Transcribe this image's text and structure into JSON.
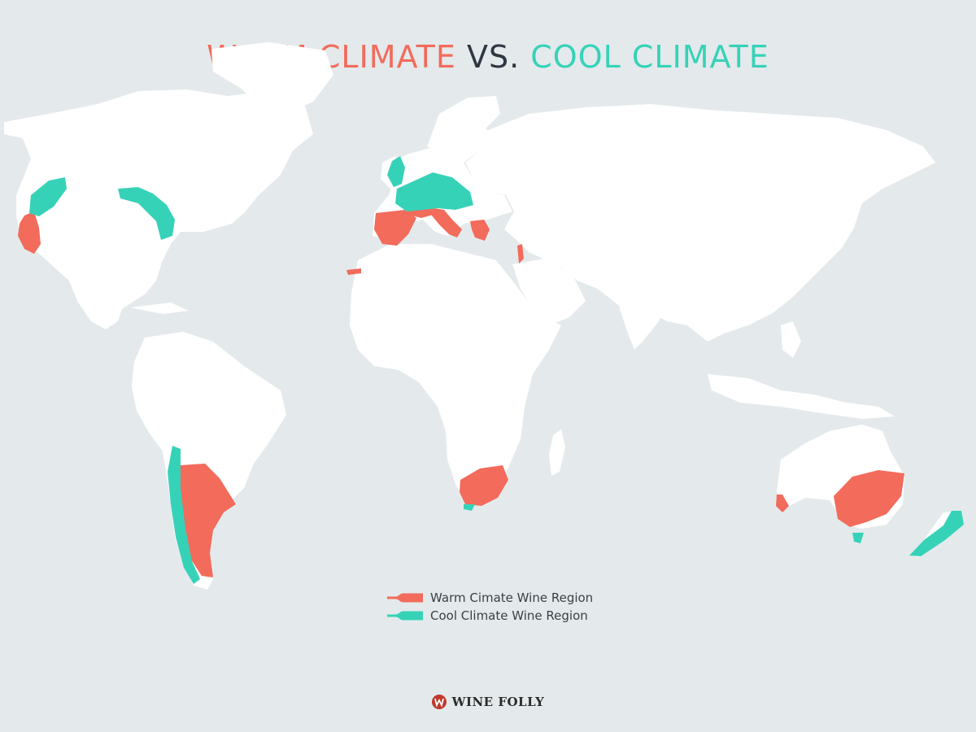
{
  "title": {
    "warm": "WARM CLIMATE",
    "vs": "VS.",
    "cool": "COOL CLIMATE"
  },
  "legend": {
    "warm_label": "Warm Cimate Wine Region",
    "cool_label": "Cool Climate Wine Region"
  },
  "brand": {
    "name": "WINE FOLLY",
    "icon": "wine-folly-logo-icon"
  },
  "colors": {
    "warm": "#f26b5b",
    "cool": "#36d2b8",
    "land": "#ffffff",
    "ocean": "#e4eaec"
  },
  "regions": {
    "warm": [
      "California",
      "Spain",
      "Southern France",
      "Italy",
      "Greece",
      "Canary Islands",
      "Israel",
      "Argentina",
      "South Africa",
      "Western Australia",
      "South-Eastern Australia"
    ],
    "cool": [
      "Oregon & Washington",
      "Great Lakes",
      "Northern France & Germany",
      "England",
      "Chile",
      "Western Cape coast",
      "Tasmania",
      "New Zealand",
      "Patagonia"
    ]
  }
}
